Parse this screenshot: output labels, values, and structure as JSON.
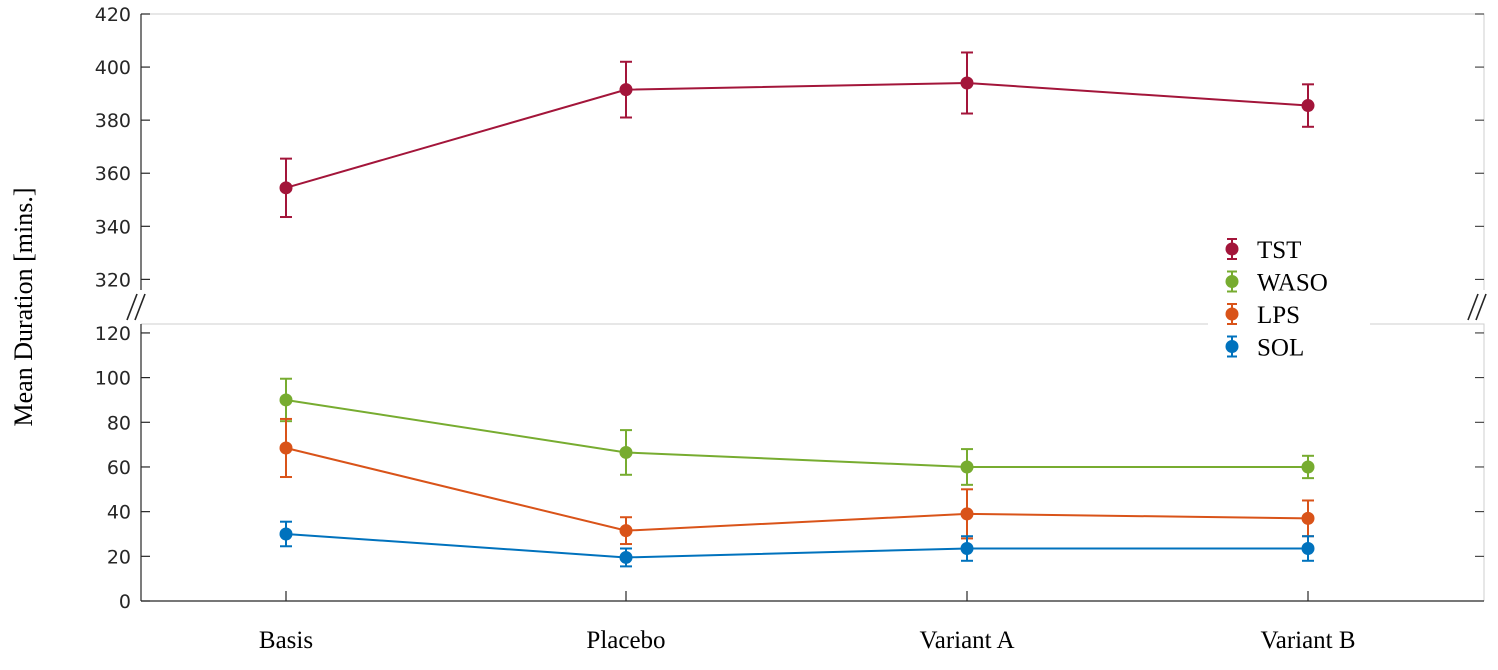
{
  "chart_data": {
    "type": "line",
    "ylabel": "Mean Duration [mins.]",
    "categories": [
      "Basis",
      "Placebo",
      "Variant A",
      "Variant B"
    ],
    "y_upper_ticks": [
      320,
      340,
      360,
      380,
      400,
      420
    ],
    "y_lower_ticks": [
      0,
      20,
      40,
      60,
      80,
      100,
      120
    ],
    "ylim_upper": [
      316,
      420
    ],
    "ylim_lower": [
      0,
      124
    ],
    "axis_break": true,
    "grid": false,
    "legend_position": "right",
    "series": [
      {
        "name": "TST",
        "color": "#a3153a",
        "values": [
          354.5,
          391.5,
          394,
          385.5
        ],
        "err": [
          11,
          10.5,
          11.5,
          8
        ],
        "panel": "upper"
      },
      {
        "name": "WASO",
        "color": "#77ac30",
        "values": [
          90,
          66.5,
          60,
          60
        ],
        "err": [
          9.5,
          10,
          8,
          5
        ],
        "panel": "lower"
      },
      {
        "name": "LPS",
        "color": "#d95319",
        "values": [
          68.5,
          31.5,
          39,
          37
        ],
        "err": [
          13,
          6,
          11,
          8
        ],
        "panel": "lower"
      },
      {
        "name": "SOL",
        "color": "#0072bd",
        "values": [
          30,
          19.5,
          23.5,
          23.5
        ],
        "err": [
          5.5,
          4,
          5.5,
          5.5
        ],
        "panel": "lower"
      }
    ]
  }
}
